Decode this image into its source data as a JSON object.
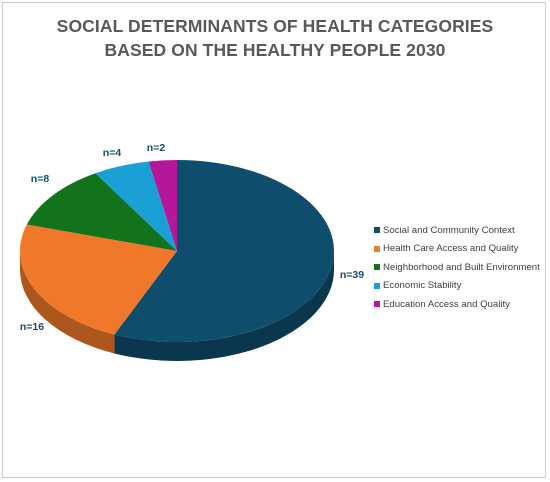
{
  "chart_data": {
    "type": "pie",
    "title": "SOCIAL DETERMINANTS OF HEALTH CATEGORIES",
    "subtitle": "BASED ON THE HEALTHY PEOPLE 2030",
    "slices": [
      {
        "name": "Social and Community Context",
        "value": 39,
        "label": "n=39",
        "color": "#0f4d6c"
      },
      {
        "name": "Health Care Access and Quality",
        "value": 16,
        "label": "n=16",
        "color": "#f0782a"
      },
      {
        "name": "Neighborhood and Built Environment",
        "value": 8,
        "label": "n=8",
        "color": "#13721c"
      },
      {
        "name": "Economic Stability",
        "value": 4,
        "label": "n=4",
        "color": "#1aa0d4"
      },
      {
        "name": "Education Access and Quality",
        "value": 2,
        "label": "n=2",
        "color": "#b5179a"
      }
    ],
    "label_color": "#0f4d6c",
    "legend_position": "right",
    "style": "3d-pie"
  }
}
